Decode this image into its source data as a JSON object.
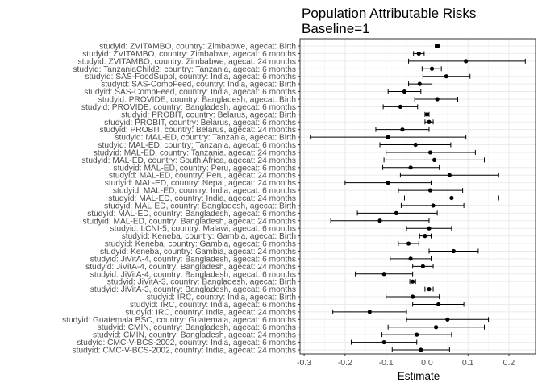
{
  "chart_data": {
    "type": "forest",
    "title": [
      "Population Attributable Risks",
      "Baseline=1"
    ],
    "xlabel": "Estimate",
    "ylabel": "",
    "xlim": [
      -0.31,
      0.265
    ],
    "x_ticks": [
      -0.3,
      -0.2,
      -0.1,
      0.0,
      0.1,
      0.2
    ],
    "x_tick_labels": [
      "-0.3",
      "-0.2",
      "-0.1",
      "0.0",
      "0.1",
      "0.2"
    ],
    "grid": true,
    "rows": [
      {
        "label": "studyid: ZVITAMBO, country: Zimbabwe, agecat: Birth",
        "est": 0.025,
        "lo": 0.02,
        "hi": 0.03
      },
      {
        "label": "studyid: ZVITAMBO, country: Zimbabwe, agecat: 6 months",
        "est": -0.02,
        "lo": -0.033,
        "hi": -0.007
      },
      {
        "label": "studyid: ZVITAMBO, country: Zimbabwe, agecat: 24 months",
        "est": 0.095,
        "lo": -0.045,
        "hi": 0.24
      },
      {
        "label": "studyid: TanzaniaChild2, country: Tanzania, agecat: 6 months",
        "est": 0.012,
        "lo": -0.012,
        "hi": 0.035
      },
      {
        "label": "studyid: SAS-FoodSuppl, country: India, agecat: 6 months",
        "est": 0.047,
        "lo": -0.01,
        "hi": 0.105
      },
      {
        "label": "studyid: SAS-CompFeed, country: India, agecat: Birth",
        "est": -0.018,
        "lo": -0.045,
        "hi": 0.012
      },
      {
        "label": "studyid: SAS-CompFeed, country: India, agecat: 6 months",
        "est": -0.055,
        "lo": -0.095,
        "hi": -0.015
      },
      {
        "label": "studyid: PROVIDE, country: Bangladesh, agecat: Birth",
        "est": 0.025,
        "lo": -0.03,
        "hi": 0.075
      },
      {
        "label": "studyid: PROVIDE, country: Bangladesh, agecat: 6 months",
        "est": -0.065,
        "lo": -0.107,
        "hi": -0.023
      },
      {
        "label": "studyid: PROBIT, country: Belarus, agecat: Birth",
        "est": 0.0,
        "lo": -0.005,
        "hi": 0.005
      },
      {
        "label": "studyid: PROBIT, country: Belarus, agecat: 6 months",
        "est": 0.005,
        "lo": -0.005,
        "hi": 0.015
      },
      {
        "label": "studyid: PROBIT, country: Belarus, agecat: 24 months",
        "est": -0.06,
        "lo": -0.125,
        "hi": 0.005
      },
      {
        "label": "studyid: MAL-ED, country: Tanzania, agecat: Birth",
        "est": -0.095,
        "lo": -0.285,
        "hi": 0.095
      },
      {
        "label": "studyid: MAL-ED, country: Tanzania, agecat: 6 months",
        "est": -0.028,
        "lo": -0.115,
        "hi": 0.058
      },
      {
        "label": "studyid: MAL-ED, country: Tanzania, agecat: 24 months",
        "est": 0.008,
        "lo": -0.1,
        "hi": 0.118
      },
      {
        "label": "studyid: MAL-ED, country: South Africa, agecat: 24 months",
        "est": 0.018,
        "lo": -0.105,
        "hi": 0.14
      },
      {
        "label": "studyid: MAL-ED, country: Peru, agecat: 6 months",
        "est": -0.04,
        "lo": -0.108,
        "hi": 0.03
      },
      {
        "label": "studyid: MAL-ED, country: Peru, agecat: 24 months",
        "est": 0.055,
        "lo": -0.065,
        "hi": 0.175
      },
      {
        "label": "studyid: MAL-ED, country: Nepal, agecat: 24 months",
        "est": -0.095,
        "lo": -0.2,
        "hi": 0.01
      },
      {
        "label": "studyid: MAL-ED, country: India, agecat: 6 months",
        "est": 0.008,
        "lo": -0.07,
        "hi": 0.087
      },
      {
        "label": "studyid: MAL-ED, country: India, agecat: 24 months",
        "est": 0.06,
        "lo": -0.055,
        "hi": 0.175
      },
      {
        "label": "studyid: MAL-ED, country: Bangladesh, agecat: Birth",
        "est": 0.015,
        "lo": -0.063,
        "hi": 0.09
      },
      {
        "label": "studyid: MAL-ED, country: Bangladesh, agecat: 6 months",
        "est": -0.075,
        "lo": -0.17,
        "hi": 0.025
      },
      {
        "label": "studyid: MAL-ED, country: Bangladesh, agecat: 24 months",
        "est": -0.115,
        "lo": -0.235,
        "hi": 0.005
      },
      {
        "label": "studyid: LCNI-5, country: Malawi, agecat: 6 months",
        "est": 0.005,
        "lo": -0.05,
        "hi": 0.06
      },
      {
        "label": "studyid: Keneba, country: Gambia, agecat: Birth",
        "est": -0.005,
        "lo": -0.018,
        "hi": 0.01
      },
      {
        "label": "studyid: Keneba, country: Gambia, agecat: 6 months",
        "est": -0.045,
        "lo": -0.07,
        "hi": -0.02
      },
      {
        "label": "studyid: Keneba, country: Gambia, agecat: 24 months",
        "est": 0.065,
        "lo": 0.005,
        "hi": 0.125
      },
      {
        "label": "studyid: JiVitA-4, country: Bangladesh, agecat: 6 months",
        "est": -0.04,
        "lo": -0.09,
        "hi": 0.01
      },
      {
        "label": "studyid: JiVitA-4, country: Bangladesh, agecat: 24 months",
        "est": -0.01,
        "lo": -0.035,
        "hi": 0.015
      },
      {
        "label": "studyid: JiVitA-4, country: Bangladesh, agecat: 6 months",
        "est": -0.105,
        "lo": -0.175,
        "hi": -0.035
      },
      {
        "label": "studyid: JiVitA-3, country: Bangladesh, agecat: Birth",
        "est": -0.035,
        "lo": -0.042,
        "hi": -0.028
      },
      {
        "label": "studyid: JiVitA-3, country: Bangladesh, agecat: 6 months",
        "est": 0.005,
        "lo": -0.005,
        "hi": 0.015
      },
      {
        "label": "studyid: IRC, country: India, agecat: Birth",
        "est": -0.035,
        "lo": -0.1,
        "hi": 0.03
      },
      {
        "label": "studyid: IRC, country: India, agecat: 6 months",
        "est": 0.028,
        "lo": -0.035,
        "hi": 0.09
      },
      {
        "label": "studyid: IRC, country: India, agecat: 24 months",
        "est": -0.14,
        "lo": -0.23,
        "hi": -0.05
      },
      {
        "label": "studyid: Guatemala BSC, country: Guatemala, agecat: 6 months",
        "est": 0.05,
        "lo": -0.05,
        "hi": 0.15
      },
      {
        "label": "studyid: CMIN, country: Bangladesh, agecat: 6 months",
        "est": 0.022,
        "lo": -0.095,
        "hi": 0.14
      },
      {
        "label": "studyid: CMIN, country: Bangladesh, agecat: 24 months",
        "est": -0.025,
        "lo": -0.11,
        "hi": 0.06
      },
      {
        "label": "studyid: CMC-V-BCS-2002, country: India, agecat: 6 months",
        "est": -0.105,
        "lo": -0.185,
        "hi": -0.025
      },
      {
        "label": "studyid: CMC-V-BCS-2002, country: India, agecat: 24 months",
        "est": -0.015,
        "lo": -0.085,
        "hi": 0.055
      }
    ]
  }
}
